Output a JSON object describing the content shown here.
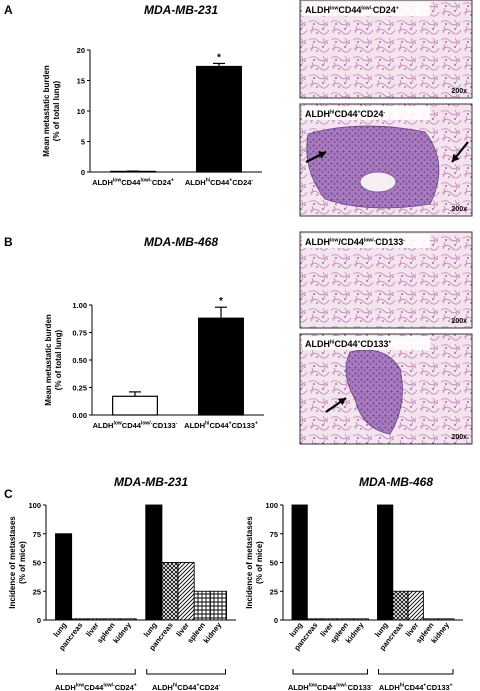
{
  "panels": {
    "A": "A",
    "B": "B",
    "C": "C"
  },
  "chart_data": [
    {
      "type": "bar",
      "panel": "A",
      "title": "MDA-MB-231",
      "ylabel": "Mean metastatic burden\n(% of total lung)",
      "ylim": [
        0,
        20
      ],
      "yticks": [
        "0",
        "5",
        "10",
        "15",
        "20"
      ],
      "categories": [
        {
          "main": "ALDH",
          "sup1": "low",
          "mid": "CD44",
          "sup2": "low/-",
          "end": "CD24",
          "sup3": "+"
        },
        {
          "main": "ALDH",
          "sup1": "hi",
          "mid": "CD44",
          "sup2": "+",
          "end": "CD24",
          "sup3": "-"
        }
      ],
      "values": [
        0.1,
        17.3
      ],
      "errors": [
        0.05,
        0.5
      ],
      "significance": [
        "",
        "*"
      ],
      "fills": [
        "white",
        "black"
      ]
    },
    {
      "type": "bar",
      "panel": "B",
      "title": "MDA-MB-468",
      "ylabel": "Mean metastatic burden\n(% of total lung)",
      "ylim": [
        0,
        1.0
      ],
      "yticks": [
        "0.00",
        "0.25",
        "0.50",
        "0.75",
        "1.00"
      ],
      "categories": [
        {
          "main": "ALDH",
          "sup1": "low",
          "mid": "CD44",
          "sup2": "low/-",
          "end": "CD133",
          "sup3": "-"
        },
        {
          "main": "ALDH",
          "sup1": "hi",
          "mid": "CD44",
          "sup2": "+",
          "end": "CD133",
          "sup3": "+"
        }
      ],
      "values": [
        0.17,
        0.88
      ],
      "errors": [
        0.04,
        0.1
      ],
      "significance": [
        "",
        "*"
      ],
      "fills": [
        "white",
        "black"
      ]
    },
    {
      "type": "bar",
      "panel": "C",
      "title": "MDA-MB-231",
      "ylabel": "Incidence of metastases\n(% of mice)",
      "ylim": [
        0,
        100
      ],
      "yticks": [
        "0",
        "25",
        "50",
        "75",
        "100"
      ],
      "organs": [
        "lung",
        "pancreas",
        "liver",
        "spleen",
        "kidney"
      ],
      "groups": [
        {
          "label": {
            "main": "ALDH",
            "sup1": "low",
            "mid": "CD44",
            "sup2": "low/-",
            "end": "CD24",
            "sup3": "+"
          },
          "values": [
            75,
            1,
            1,
            1,
            1
          ]
        },
        {
          "label": {
            "main": "ALDH",
            "sup1": "hi",
            "mid": "CD44",
            "sup2": "+",
            "end": "CD24",
            "sup3": "-"
          },
          "values": [
            100,
            50,
            50,
            25,
            25
          ]
        }
      ],
      "patterns": [
        "solid",
        "crosshatch",
        "diagonal",
        "grid",
        "grid"
      ]
    },
    {
      "type": "bar",
      "panel": "C",
      "title": "MDA-MB-468",
      "ylabel": "Incidence of metastases\n(% of mice)",
      "ylim": [
        0,
        100
      ],
      "yticks": [
        "0",
        "25",
        "50",
        "75",
        "100"
      ],
      "organs": [
        "lung",
        "pancreas",
        "liver",
        "spleen",
        "kidney"
      ],
      "groups": [
        {
          "label": {
            "main": "ALDH",
            "sup1": "low",
            "mid": "CD44",
            "sup2": "low/-",
            "end": "CD133",
            "sup3": "-"
          },
          "values": [
            100,
            1,
            1,
            1,
            1
          ]
        },
        {
          "label": {
            "main": "ALDH",
            "sup1": "hi",
            "mid": "CD44",
            "sup2": "+",
            "end": "CD133",
            "sup3": "+"
          },
          "values": [
            100,
            25,
            25,
            1,
            1
          ]
        }
      ],
      "patterns": [
        "solid",
        "crosshatch",
        "diagonal",
        "grid",
        "grid"
      ]
    }
  ],
  "micrographs": [
    {
      "label": {
        "main": "ALDH",
        "sup1": "low",
        "mid": "CD44",
        "sup2": "low/-",
        "end": "CD24",
        "sup3": "+"
      },
      "magnification": "200x",
      "arrows": 0
    },
    {
      "label": {
        "main": "ALDH",
        "sup1": "hi",
        "mid": "CD44",
        "sup2": "+",
        "end": "CD24",
        "sup3": "-"
      },
      "magnification": "200x",
      "arrows": 2
    },
    {
      "label": {
        "main": "ALDH",
        "sup1": "low",
        "mid": "/CD44",
        "sup2": "low/-",
        "end": "CD133",
        "sup3": "-"
      },
      "magnification": "200x",
      "arrows": 0
    },
    {
      "label": {
        "main": "ALDH",
        "sup1": "hi",
        "mid": "CD44",
        "sup2": "+",
        "end": "CD133",
        "sup3": "+"
      },
      "magnification": "200x",
      "arrows": 1
    }
  ]
}
